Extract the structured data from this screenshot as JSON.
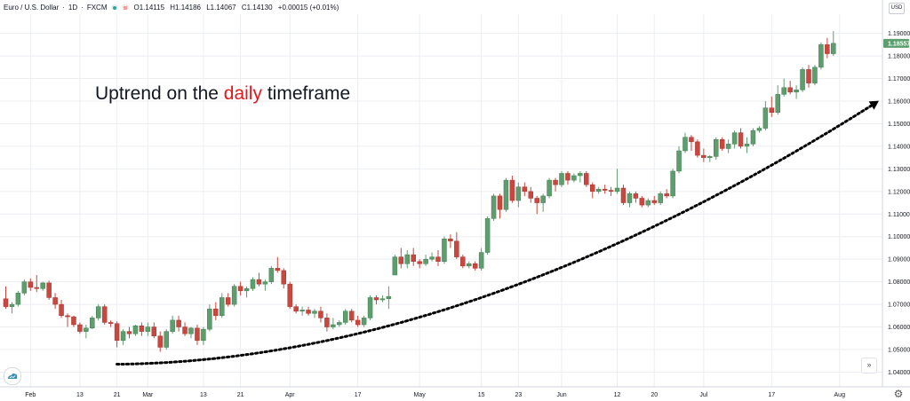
{
  "header": {
    "symbol": "Euro / U.S. Dollar",
    "interval": "1D",
    "exchange": "FXCM",
    "open": "O1.14115",
    "high": "H1.14186",
    "low": "L1.14067",
    "close": "C1.14130",
    "change": "+0.00015 (+0.01%)"
  },
  "currency_label": "USD",
  "annotation": {
    "before": "Uptrend on the",
    "highlight": "daily",
    "after": "timeframe"
  },
  "colors": {
    "up": "#5e9e6e",
    "down": "#c9473f",
    "grid": "#eceef2",
    "last_price_bg": "#5e9e6e",
    "annotation_highlight": "#e3191c"
  },
  "icons": {
    "chart_logo": "cloud-chart-icon",
    "scroll_right": "double-chevron-right-icon",
    "settings": "gear-icon"
  },
  "chart_data": {
    "type": "candlestick",
    "title": "Euro / U.S. Dollar, 1D, FXCM",
    "ylim": [
      1.0335,
      1.1985
    ],
    "y_ticks": [
      "1.19000",
      "1.18000",
      "1.17000",
      "1.16000",
      "1.15000",
      "1.14000",
      "1.13000",
      "1.12000",
      "1.11000",
      "1.10000",
      "1.09000",
      "1.08000",
      "1.07000",
      "1.06000",
      "1.05000",
      "1.04000"
    ],
    "y_tick_values": [
      1.19,
      1.18,
      1.17,
      1.16,
      1.15,
      1.14,
      1.13,
      1.12,
      1.11,
      1.1,
      1.09,
      1.08,
      1.07,
      1.06,
      1.05,
      1.04
    ],
    "last_price": "1.18557",
    "last_price_value": 1.18557,
    "x_ticks": [
      {
        "label": "Feb",
        "index": 4
      },
      {
        "label": "13",
        "index": 12
      },
      {
        "label": "21",
        "index": 18
      },
      {
        "label": "Mar",
        "index": 23
      },
      {
        "label": "13",
        "index": 32
      },
      {
        "label": "21",
        "index": 38
      },
      {
        "label": "Apr",
        "index": 46
      },
      {
        "label": "17",
        "index": 57
      },
      {
        "label": "May",
        "index": 67
      },
      {
        "label": "15",
        "index": 77
      },
      {
        "label": "23",
        "index": 83
      },
      {
        "label": "Jun",
        "index": 90
      },
      {
        "label": "12",
        "index": 99
      },
      {
        "label": "20",
        "index": 105
      },
      {
        "label": "Jul",
        "index": 113
      },
      {
        "label": "17",
        "index": 124
      },
      {
        "label": "Aug",
        "index": 135
      }
    ],
    "candles": [
      [
        1.0725,
        1.078,
        1.068,
        1.069
      ],
      [
        1.069,
        1.071,
        1.066,
        1.07
      ],
      [
        1.07,
        1.076,
        1.069,
        1.075
      ],
      [
        1.075,
        1.081,
        1.074,
        1.08
      ],
      [
        1.08,
        1.0815,
        1.076,
        1.0775
      ],
      [
        1.0775,
        1.083,
        1.0755,
        1.077
      ],
      [
        1.077,
        1.08,
        1.076,
        1.0795
      ],
      [
        1.0795,
        1.0805,
        1.072,
        1.073
      ],
      [
        1.073,
        1.075,
        1.068,
        1.07
      ],
      [
        1.07,
        1.072,
        1.064,
        1.065
      ],
      [
        1.065,
        1.066,
        1.06,
        1.0645
      ],
      [
        1.0645,
        1.065,
        1.06,
        1.061
      ],
      [
        1.061,
        1.062,
        1.057,
        1.058
      ],
      [
        1.058,
        1.061,
        1.055,
        1.0595
      ],
      [
        1.0595,
        1.065,
        1.059,
        1.064
      ],
      [
        1.064,
        1.07,
        1.063,
        1.069
      ],
      [
        1.069,
        1.07,
        1.061,
        1.062
      ],
      [
        1.062,
        1.063,
        1.06,
        1.0615
      ],
      [
        1.0615,
        1.0625,
        1.051,
        1.054
      ],
      [
        1.054,
        1.059,
        1.052,
        1.058
      ],
      [
        1.058,
        1.06,
        1.055,
        1.057
      ],
      [
        1.057,
        1.061,
        1.056,
        1.0605
      ],
      [
        1.0605,
        1.062,
        1.056,
        1.058
      ],
      [
        1.058,
        1.062,
        1.056,
        1.06
      ],
      [
        1.06,
        1.062,
        1.055,
        1.056
      ],
      [
        1.056,
        1.058,
        1.049,
        1.051
      ],
      [
        1.051,
        1.059,
        1.05,
        1.058
      ],
      [
        1.058,
        1.065,
        1.057,
        1.063
      ],
      [
        1.063,
        1.065,
        1.058,
        1.06
      ],
      [
        1.06,
        1.062,
        1.056,
        1.057
      ],
      [
        1.057,
        1.06,
        1.055,
        1.0595
      ],
      [
        1.0595,
        1.061,
        1.052,
        1.054
      ],
      [
        1.054,
        1.06,
        1.052,
        1.059
      ],
      [
        1.059,
        1.07,
        1.058,
        1.068
      ],
      [
        1.068,
        1.071,
        1.063,
        1.065
      ],
      [
        1.065,
        1.075,
        1.064,
        1.073
      ],
      [
        1.073,
        1.075,
        1.069,
        1.07
      ],
      [
        1.07,
        1.079,
        1.069,
        1.078
      ],
      [
        1.078,
        1.08,
        1.074,
        1.076
      ],
      [
        1.076,
        1.078,
        1.073,
        1.077
      ],
      [
        1.077,
        1.082,
        1.076,
        1.081
      ],
      [
        1.081,
        1.084,
        1.078,
        1.079
      ],
      [
        1.079,
        1.081,
        1.076,
        1.08
      ],
      [
        1.08,
        1.087,
        1.079,
        1.086
      ],
      [
        1.086,
        1.091,
        1.084,
        1.085
      ],
      [
        1.085,
        1.086,
        1.077,
        1.079
      ],
      [
        1.079,
        1.08,
        1.068,
        1.069
      ],
      [
        1.069,
        1.07,
        1.066,
        1.067
      ],
      [
        1.067,
        1.069,
        1.065,
        1.0675
      ],
      [
        1.0675,
        1.069,
        1.065,
        1.066
      ],
      [
        1.066,
        1.068,
        1.064,
        1.067
      ],
      [
        1.067,
        1.069,
        1.062,
        1.064
      ],
      [
        1.064,
        1.066,
        1.058,
        1.06
      ],
      [
        1.06,
        1.064,
        1.059,
        1.061
      ],
      [
        1.061,
        1.063,
        1.06,
        1.062
      ],
      [
        1.062,
        1.068,
        1.061,
        1.067
      ],
      [
        1.067,
        1.068,
        1.062,
        1.063
      ],
      [
        1.063,
        1.065,
        1.06,
        1.061
      ],
      [
        1.061,
        1.065,
        1.06,
        1.064
      ],
      [
        1.064,
        1.074,
        1.063,
        1.073
      ],
      [
        1.073,
        1.074,
        1.07,
        1.072
      ],
      [
        1.072,
        1.074,
        1.071,
        1.0725
      ],
      [
        1.0725,
        1.078,
        1.068,
        1.0735
      ],
      [
        1.083,
        1.092,
        1.083,
        1.091
      ],
      [
        1.091,
        1.095,
        1.086,
        1.088
      ],
      [
        1.088,
        1.094,
        1.086,
        1.092
      ],
      [
        1.092,
        1.095,
        1.087,
        1.089
      ],
      [
        1.089,
        1.09,
        1.086,
        1.088
      ],
      [
        1.088,
        1.092,
        1.087,
        1.09
      ],
      [
        1.09,
        1.093,
        1.089,
        1.091
      ],
      [
        1.091,
        1.094,
        1.087,
        1.089
      ],
      [
        1.089,
        1.1,
        1.088,
        1.099
      ],
      [
        1.099,
        1.101,
        1.095,
        1.098
      ],
      [
        1.098,
        1.102,
        1.09,
        1.091
      ],
      [
        1.091,
        1.092,
        1.086,
        1.087
      ],
      [
        1.087,
        1.089,
        1.086,
        1.088
      ],
      [
        1.088,
        1.089,
        1.085,
        1.086
      ],
      [
        1.086,
        1.095,
        1.085,
        1.093
      ],
      [
        1.093,
        1.109,
        1.092,
        1.108
      ],
      [
        1.108,
        1.119,
        1.107,
        1.118
      ],
      [
        1.118,
        1.119,
        1.108,
        1.112
      ],
      [
        1.112,
        1.126,
        1.111,
        1.125
      ],
      [
        1.125,
        1.127,
        1.115,
        1.116
      ],
      [
        1.116,
        1.124,
        1.113,
        1.122
      ],
      [
        1.122,
        1.124,
        1.118,
        1.12
      ],
      [
        1.12,
        1.122,
        1.115,
        1.117
      ],
      [
        1.117,
        1.118,
        1.11,
        1.115
      ],
      [
        1.115,
        1.119,
        1.111,
        1.118
      ],
      [
        1.118,
        1.126,
        1.117,
        1.125
      ],
      [
        1.125,
        1.126,
        1.12,
        1.123
      ],
      [
        1.123,
        1.129,
        1.122,
        1.128
      ],
      [
        1.128,
        1.129,
        1.123,
        1.125
      ],
      [
        1.125,
        1.128,
        1.124,
        1.127
      ],
      [
        1.127,
        1.129,
        1.124,
        1.128
      ],
      [
        1.128,
        1.129,
        1.122,
        1.123
      ],
      [
        1.123,
        1.124,
        1.117,
        1.12
      ],
      [
        1.12,
        1.122,
        1.119,
        1.121
      ],
      [
        1.121,
        1.123,
        1.119,
        1.1205
      ],
      [
        1.1205,
        1.122,
        1.118,
        1.12
      ],
      [
        1.12,
        1.13,
        1.119,
        1.1215
      ],
      [
        1.1215,
        1.123,
        1.114,
        1.115
      ],
      [
        1.115,
        1.12,
        1.113,
        1.119
      ],
      [
        1.119,
        1.12,
        1.115,
        1.117
      ],
      [
        1.117,
        1.118,
        1.113,
        1.114
      ],
      [
        1.114,
        1.117,
        1.113,
        1.116
      ],
      [
        1.116,
        1.118,
        1.114,
        1.115
      ],
      [
        1.115,
        1.12,
        1.114,
        1.119
      ],
      [
        1.119,
        1.121,
        1.117,
        1.118
      ],
      [
        1.118,
        1.13,
        1.117,
        1.129
      ],
      [
        1.129,
        1.14,
        1.128,
        1.138
      ],
      [
        1.138,
        1.146,
        1.137,
        1.144
      ],
      [
        1.144,
        1.145,
        1.138,
        1.142
      ],
      [
        1.142,
        1.143,
        1.135,
        1.136
      ],
      [
        1.136,
        1.139,
        1.133,
        1.135
      ],
      [
        1.135,
        1.136,
        1.133,
        1.1355
      ],
      [
        1.1355,
        1.144,
        1.134,
        1.143
      ],
      [
        1.143,
        1.144,
        1.138,
        1.139
      ],
      [
        1.139,
        1.143,
        1.137,
        1.141
      ],
      [
        1.141,
        1.147,
        1.139,
        1.146
      ],
      [
        1.146,
        1.148,
        1.139,
        1.14
      ],
      [
        1.14,
        1.144,
        1.137,
        1.141
      ],
      [
        1.141,
        1.148,
        1.14,
        1.147
      ],
      [
        1.147,
        1.149,
        1.146,
        1.148
      ],
      [
        1.148,
        1.16,
        1.147,
        1.157
      ],
      [
        1.157,
        1.162,
        1.153,
        1.155
      ],
      [
        1.155,
        1.167,
        1.154,
        1.163
      ],
      [
        1.163,
        1.17,
        1.162,
        1.166
      ],
      [
        1.166,
        1.169,
        1.163,
        1.164
      ],
      [
        1.164,
        1.167,
        1.161,
        1.165
      ],
      [
        1.165,
        1.175,
        1.164,
        1.174
      ],
      [
        1.174,
        1.176,
        1.166,
        1.168
      ],
      [
        1.168,
        1.176,
        1.167,
        1.175
      ],
      [
        1.175,
        1.186,
        1.174,
        1.185
      ],
      [
        1.185,
        1.188,
        1.179,
        1.181
      ],
      [
        1.181,
        1.191,
        1.18,
        1.1856
      ]
    ],
    "trend_arrow": {
      "style": "dotted",
      "color": "#000000",
      "start": {
        "index": 18,
        "price": 1.0435
      },
      "control": {
        "index": 75,
        "price": 1.045
      },
      "end": {
        "index": 141,
        "price": 1.1595
      }
    }
  }
}
